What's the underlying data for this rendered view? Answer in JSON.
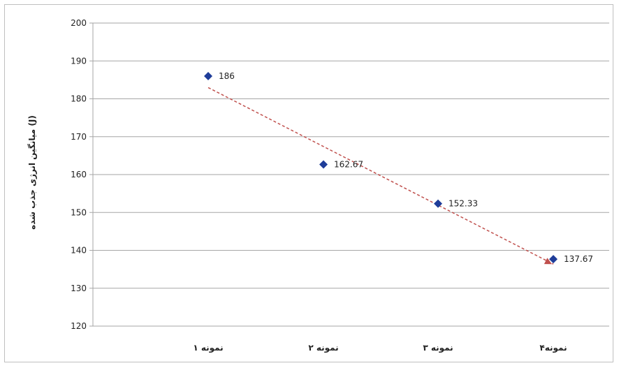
{
  "chart_data": {
    "type": "scatter",
    "categories": [
      "نمونه ۱",
      "نمونه ۲",
      "نمونه ۳",
      "نمونه۴"
    ],
    "values": [
      186,
      162.67,
      152.33,
      137.67
    ],
    "data_labels": [
      "186",
      "162.67",
      "152.33",
      "137.67"
    ],
    "ylabel": "میانگین انرژی جذب شده (J)",
    "ylim": [
      120,
      200
    ],
    "yticks": [
      120,
      130,
      140,
      150,
      160,
      170,
      180,
      190,
      200
    ],
    "grid": true,
    "trendline": {
      "type": "linear",
      "style": "dashed",
      "color": "#c0504d"
    },
    "colors": {
      "marker": "#1f3d99",
      "grid": "#a6a6a6",
      "trendline": "#c0504d"
    }
  }
}
